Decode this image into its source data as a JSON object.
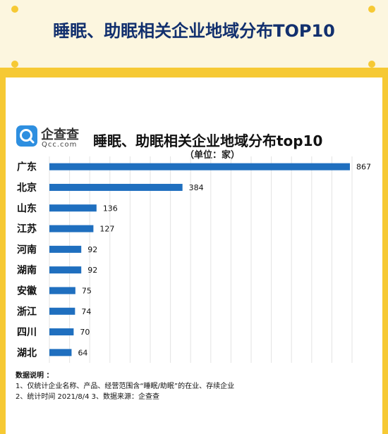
{
  "header": {
    "title": "睡眠、助眠相关企业地域分布TOP10"
  },
  "logo": {
    "name": "企查查",
    "domain": "Qcc.com"
  },
  "colors": {
    "background": "#f6c934",
    "header_text": "#12306e",
    "bar": "#1f6fbf",
    "logo": "#2e8fe0"
  },
  "chart_data": {
    "type": "bar",
    "orientation": "horizontal",
    "title": "睡眠、助眠相关企业地域分布top10",
    "subtitle": "（单位：家）",
    "categories": [
      "广东",
      "北京",
      "山东",
      "江苏",
      "河南",
      "湖南",
      "安徽",
      "浙江",
      "四川",
      "湖北"
    ],
    "values": [
      867,
      384,
      136,
      127,
      92,
      92,
      75,
      74,
      70,
      64
    ],
    "grid": "vertical",
    "data_labels": true
  },
  "notes": {
    "heading": "数据说明 ：",
    "line1": "1、仅统计企业名称、产品、经营范围含“睡眠/助眠”的在业、存续企业",
    "line2": "2、统计时间 2021/8/4       3、数据来源：企查查"
  }
}
